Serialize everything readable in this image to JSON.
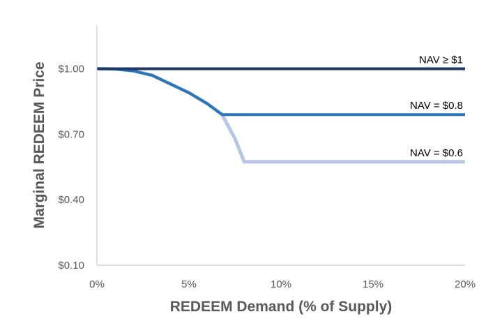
{
  "chart_data": {
    "type": "line",
    "title": "",
    "xlabel": "REDEEM Demand (% of Supply)",
    "ylabel": "Marginal REDEEM Price",
    "xlim": [
      0,
      20
    ],
    "ylim": [
      0.1,
      1.2
    ],
    "x_ticks": [
      0,
      5,
      10,
      15,
      20
    ],
    "x_tick_labels": [
      "0%",
      "5%",
      "10%",
      "15%",
      "20%"
    ],
    "y_ticks": [
      0.1,
      0.4,
      0.7,
      1.0
    ],
    "y_tick_labels": [
      "$0.10",
      "$0.40",
      "$0.70",
      "$1.00"
    ],
    "grid": false,
    "legend": "none",
    "series": [
      {
        "name": "NAV ≥ $1",
        "color": "#1f3864",
        "x": [
          0,
          20
        ],
        "y": [
          1.0,
          1.0
        ]
      },
      {
        "name": "NAV = $0.8",
        "color": "#2e75b6",
        "x": [
          0,
          1,
          2,
          3,
          4,
          5,
          6,
          6.8,
          20
        ],
        "y": [
          1.0,
          0.999,
          0.99,
          0.97,
          0.93,
          0.89,
          0.84,
          0.79,
          0.79
        ]
      },
      {
        "name": "NAV = $0.6",
        "color": "#b4c7e7",
        "x": [
          0,
          1,
          2,
          3,
          4,
          5,
          6,
          6.8,
          7.5,
          8.0,
          20
        ],
        "y": [
          1.0,
          0.999,
          0.99,
          0.97,
          0.93,
          0.89,
          0.84,
          0.79,
          0.68,
          0.574,
          0.574
        ]
      }
    ]
  }
}
